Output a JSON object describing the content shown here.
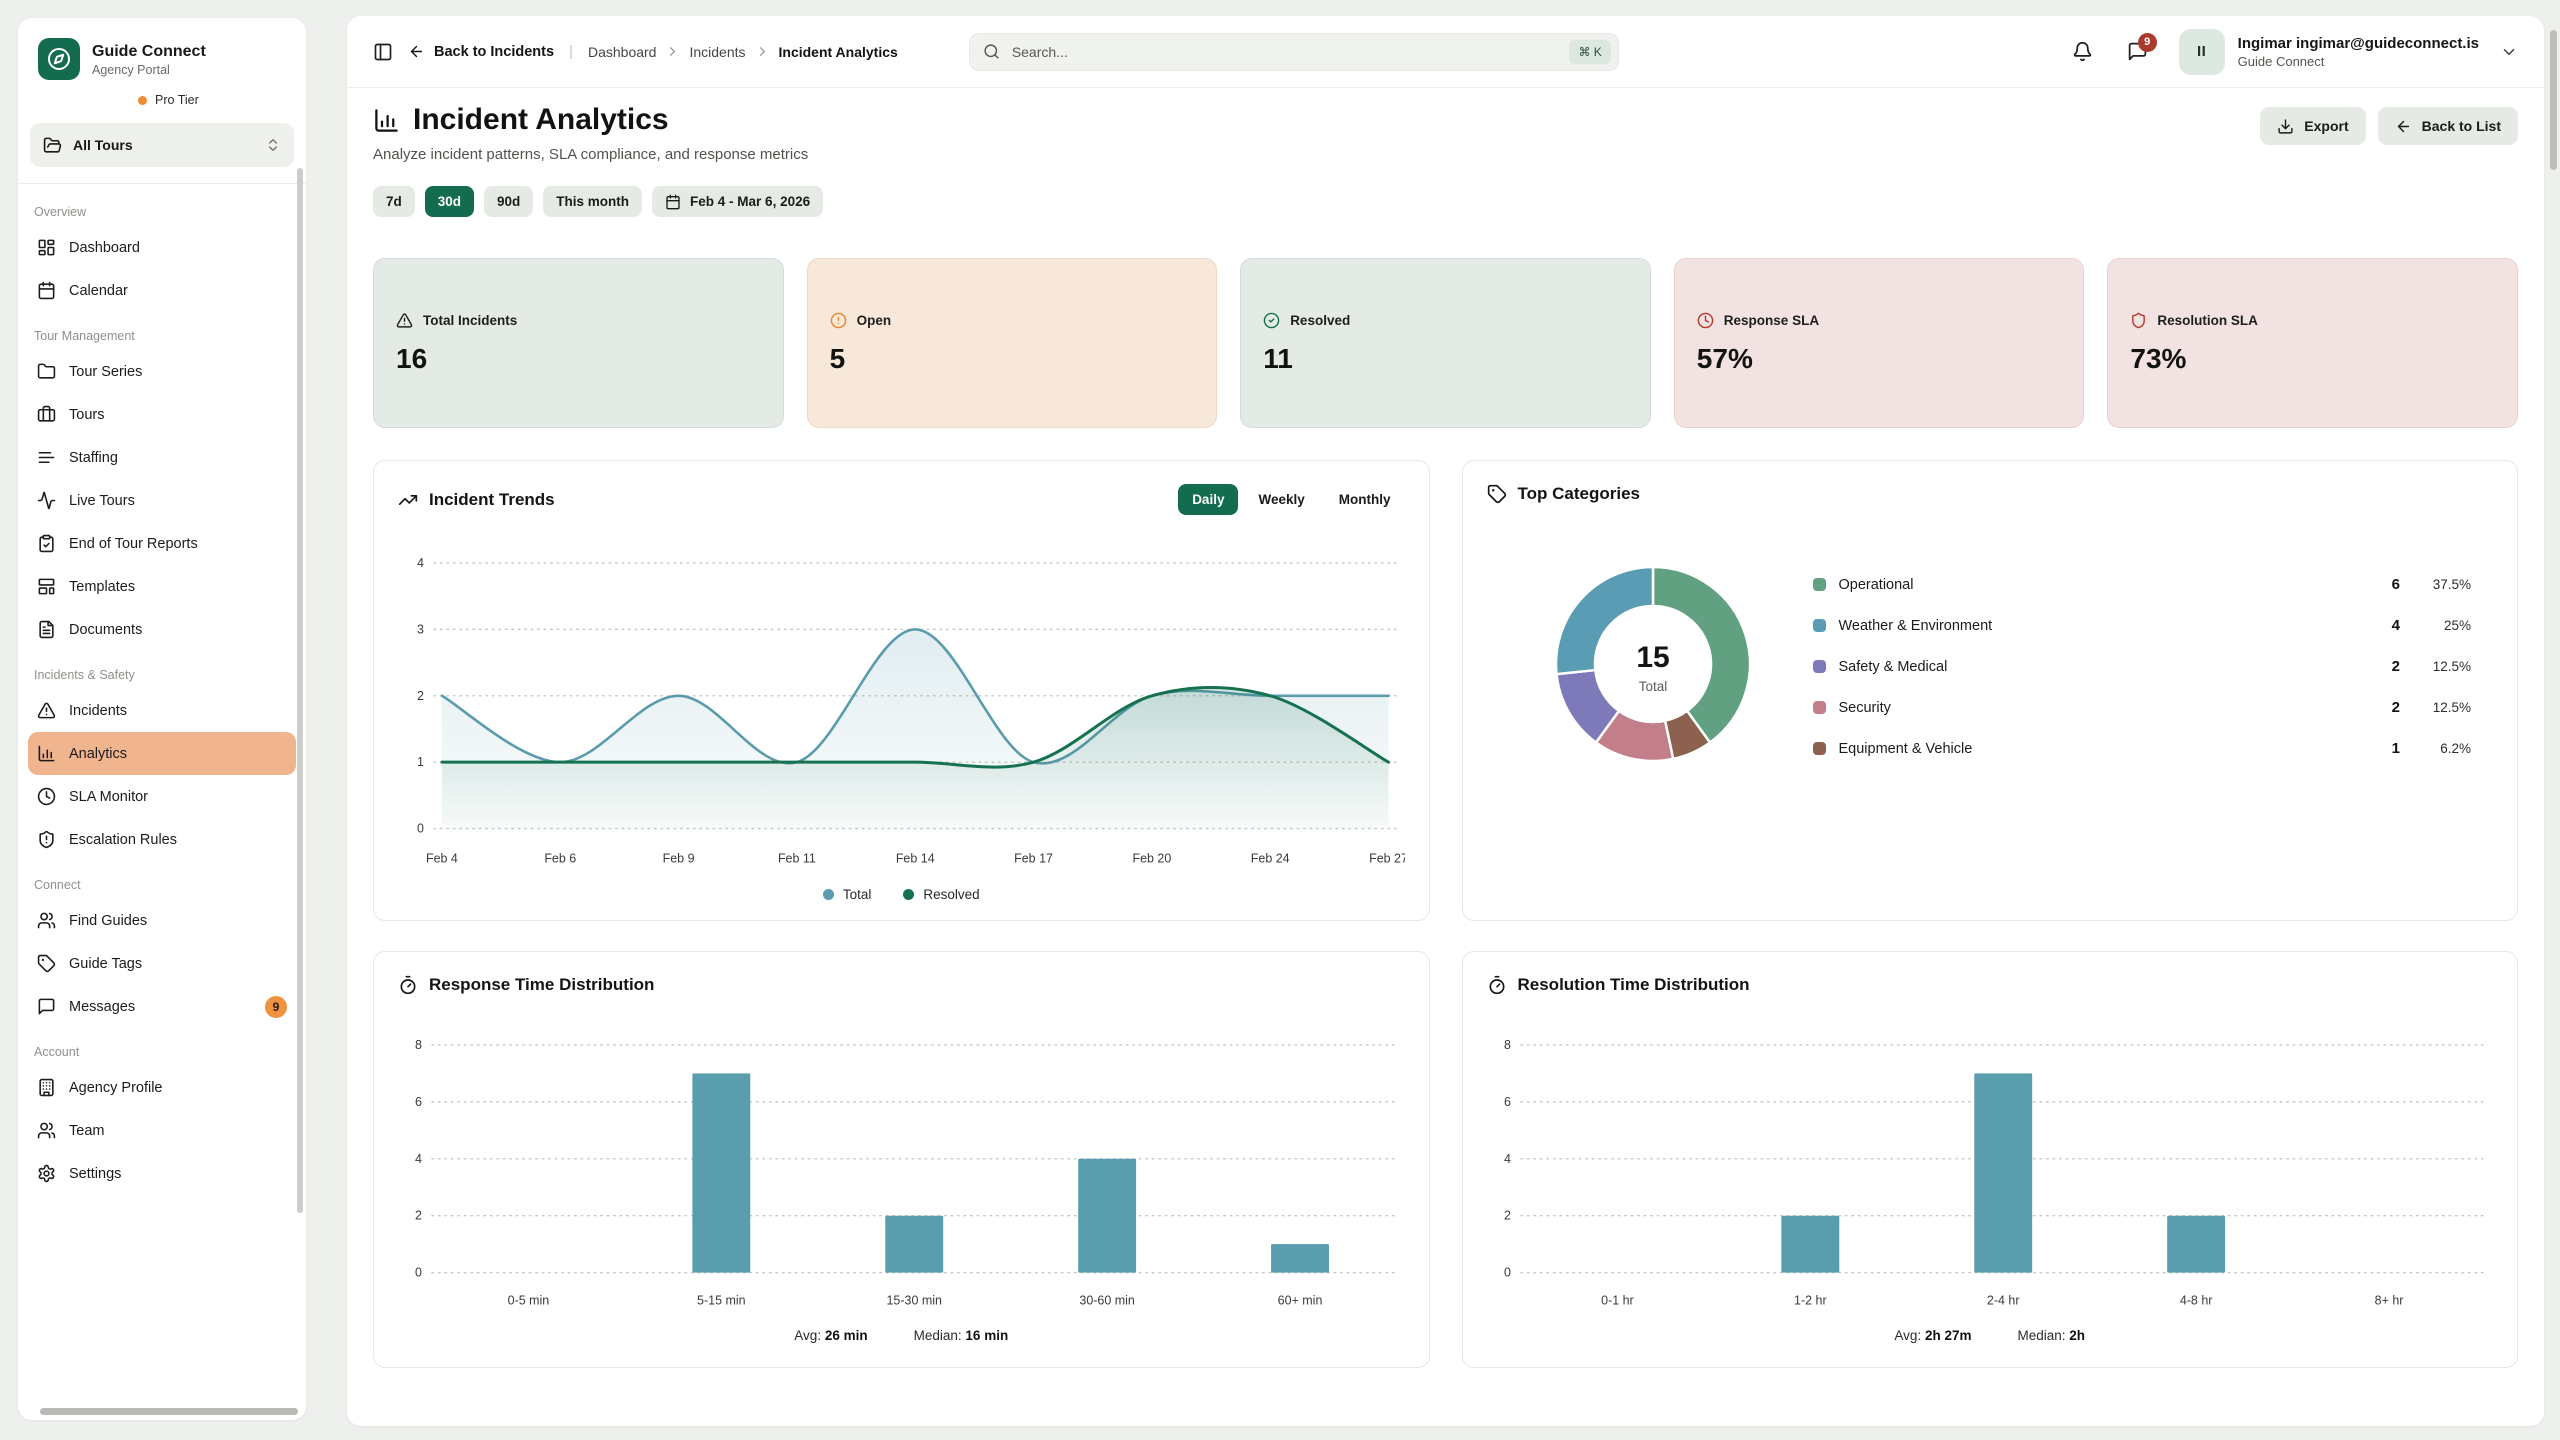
{
  "colors": {
    "brand_green": "#136c4f",
    "active_nav_salmon": "#f0b48e",
    "teal_series": "#5a9bad",
    "green_series": "#15714f",
    "bar_teal": "#5a9dae",
    "badge_orange": "#f0913f",
    "badge_red": "#a93a2c",
    "tier_dot_orange": "#ef8c35",
    "kpi_icon_orange": "#e8842c",
    "kpi_icon_green": "#16724f",
    "kpi_icon_red": "#b3382c"
  },
  "sidebar": {
    "logo": {
      "icon": "compass-icon",
      "title": "Guide Connect",
      "subtitle": "Agency Portal"
    },
    "tier": {
      "label": "Pro Tier",
      "dot_color": "#ef8c35"
    },
    "tour_selector": {
      "icon": "folder-open-icon",
      "label": "All Tours",
      "chevron_icon": "chevrons-up-down-icon"
    },
    "sections": [
      {
        "label": "Overview",
        "items": [
          {
            "label": "Dashboard",
            "icon": "dashboard-icon"
          },
          {
            "label": "Calendar",
            "icon": "calendar-icon"
          }
        ]
      },
      {
        "label": "Tour Management",
        "items": [
          {
            "label": "Tour Series",
            "icon": "folder-icon"
          },
          {
            "label": "Tours",
            "icon": "briefcase-icon"
          },
          {
            "label": "Staffing",
            "icon": "lines-icon"
          },
          {
            "label": "Live Tours",
            "icon": "activity-icon"
          },
          {
            "label": "End of Tour Reports",
            "icon": "clipboard-check-icon"
          },
          {
            "label": "Templates",
            "icon": "template-icon"
          },
          {
            "label": "Documents",
            "icon": "document-icon"
          }
        ]
      },
      {
        "label": "Incidents & Safety",
        "items": [
          {
            "label": "Incidents",
            "icon": "alert-triangle-icon"
          },
          {
            "label": "Analytics",
            "icon": "chart-column-icon",
            "active": true
          },
          {
            "label": "SLA Monitor",
            "icon": "clock-icon"
          },
          {
            "label": "Escalation Rules",
            "icon": "shield-alert-icon"
          }
        ]
      },
      {
        "label": "Connect",
        "items": [
          {
            "label": "Find Guides",
            "icon": "users-icon"
          },
          {
            "label": "Guide Tags",
            "icon": "tag-icon"
          },
          {
            "label": "Messages",
            "icon": "message-square-icon",
            "badge": "9"
          }
        ]
      },
      {
        "label": "Account",
        "items": [
          {
            "label": "Agency Profile",
            "icon": "building-icon"
          },
          {
            "label": "Team",
            "icon": "users-icon"
          },
          {
            "label": "Settings",
            "icon": "settings-icon"
          }
        ]
      }
    ]
  },
  "topbar": {
    "back_label": "Back to Incidents",
    "separator": "|",
    "breadcrumbs": [
      "Dashboard",
      "Incidents",
      "Incident Analytics"
    ],
    "search": {
      "placeholder": "Search...",
      "shortcut": "⌘ K"
    },
    "messages_badge": "9",
    "user": {
      "avatar_initials": "II",
      "name": "Ingimar ingimar@guideconnect.is",
      "org": "Guide Connect"
    }
  },
  "page": {
    "title": "Incident Analytics",
    "title_icon": "chart-column-icon",
    "subtitle": "Analyze incident patterns, SLA compliance, and response metrics",
    "actions": [
      {
        "label": "Export",
        "icon": "download-icon"
      },
      {
        "label": "Back to List",
        "icon": "arrow-left-icon"
      }
    ],
    "filters": {
      "ranges": [
        {
          "label": "7d",
          "active": false
        },
        {
          "label": "30d",
          "active": true
        },
        {
          "label": "90d",
          "active": false
        },
        {
          "label": "This month",
          "active": false
        }
      ],
      "date_range": {
        "icon": "calendar-icon",
        "label": "Feb 4 - Mar 6, 2026"
      }
    }
  },
  "kpis": [
    {
      "label": "Total Incidents",
      "value": "16",
      "icon": "alert-triangle-icon",
      "icon_color": "#1f1f1d",
      "tone": "sage"
    },
    {
      "label": "Open",
      "value": "5",
      "icon": "circle-alert-icon",
      "icon_color": "#e8842c",
      "tone": "peach"
    },
    {
      "label": "Resolved",
      "value": "11",
      "icon": "circle-check-icon",
      "icon_color": "#16724f",
      "tone": "sage"
    },
    {
      "label": "Response SLA",
      "value": "57%",
      "icon": "clock-icon",
      "icon_color": "#b3382c",
      "tone": "rose"
    },
    {
      "label": "Resolution SLA",
      "value": "73%",
      "icon": "shield-icon",
      "icon_color": "#b3382c",
      "tone": "rose"
    }
  ],
  "chart_data": [
    {
      "id": "incident_trends",
      "type": "line",
      "title": "Incident Trends",
      "title_icon": "trending-up-icon",
      "tabs": [
        "Daily",
        "Weekly",
        "Monthly"
      ],
      "active_tab": "Daily",
      "x": [
        "Feb 4",
        "Feb 6",
        "Feb 9",
        "Feb 11",
        "Feb 14",
        "Feb 17",
        "Feb 20",
        "Feb 24",
        "Feb 27"
      ],
      "series": [
        {
          "name": "Total",
          "color": "#5a9bad",
          "values": [
            2,
            1,
            2,
            1,
            3,
            1,
            2,
            2,
            2
          ]
        },
        {
          "name": "Resolved",
          "color": "#15714f",
          "values": [
            1,
            1,
            1,
            1,
            1,
            1,
            2,
            2,
            1
          ]
        }
      ],
      "ylim": [
        0,
        4
      ],
      "yticks": [
        0,
        1,
        2,
        3,
        4
      ],
      "grid": "dotted",
      "legend_position": "bottom"
    },
    {
      "id": "top_categories",
      "type": "pie",
      "title": "Top Categories",
      "title_icon": "tag-icon",
      "center_value": "15",
      "center_label": "Total",
      "categories": [
        {
          "name": "Operational",
          "count": 6,
          "pct": "37.5%",
          "color": "#61a182"
        },
        {
          "name": "Weather & Environment",
          "count": 4,
          "pct": "25%",
          "color": "#5a9cb3"
        },
        {
          "name": "Safety & Medical",
          "count": 2,
          "pct": "12.5%",
          "color": "#7e7aba"
        },
        {
          "name": "Security",
          "count": 2,
          "pct": "12.5%",
          "color": "#c27e89"
        },
        {
          "name": "Equipment & Vehicle",
          "count": 1,
          "pct": "6.2%",
          "color": "#8c614f"
        }
      ],
      "draw_order": [
        0,
        4,
        3,
        2,
        1
      ],
      "total": 15
    },
    {
      "id": "response_time",
      "type": "bar",
      "title": "Response Time Distribution",
      "title_icon": "timer-icon",
      "categories": [
        "0-5 min",
        "5-15 min",
        "15-30 min",
        "30-60 min",
        "60+ min"
      ],
      "values": [
        0,
        7,
        2,
        4,
        1
      ],
      "bar_color": "#5a9dae",
      "ylim": [
        0,
        8
      ],
      "yticks": [
        0,
        2,
        4,
        6,
        8
      ],
      "grid": "dotted",
      "avg_label": "Avg:",
      "avg": "26 min",
      "median_label": "Median:",
      "median": "16 min"
    },
    {
      "id": "resolution_time",
      "type": "bar",
      "title": "Resolution Time Distribution",
      "title_icon": "timer-icon",
      "categories": [
        "0-1 hr",
        "1-2 hr",
        "2-4 hr",
        "4-8 hr",
        "8+ hr"
      ],
      "values": [
        0,
        2,
        7,
        2,
        0
      ],
      "bar_color": "#5a9dae",
      "ylim": [
        0,
        8
      ],
      "yticks": [
        0,
        2,
        4,
        6,
        8
      ],
      "grid": "dotted",
      "avg_label": "Avg:",
      "avg": "2h 27m",
      "median_label": "Median:",
      "median": "2h"
    }
  ]
}
